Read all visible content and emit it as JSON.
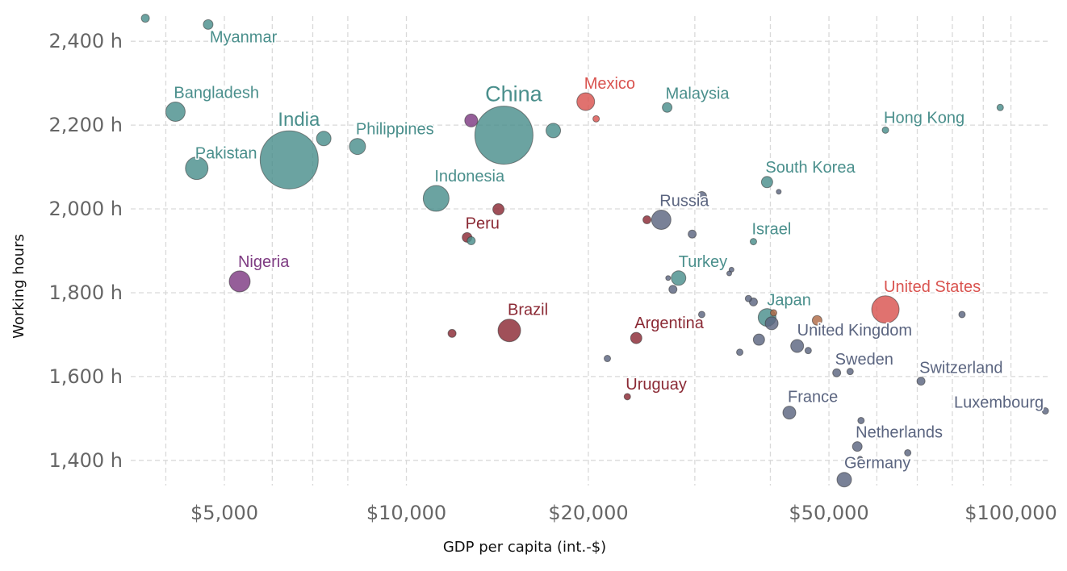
{
  "chart_data": {
    "type": "scatter",
    "title": "",
    "xlabel": "GDP per capita (int.-$)",
    "ylabel": "Working hours",
    "x_scale": "log",
    "xlim": [
      3500,
      115000
    ],
    "ylim": [
      1340,
      2460
    ],
    "x_ticks": [
      {
        "value": 5000,
        "label": "$5,000"
      },
      {
        "value": 10000,
        "label": "$10,000"
      },
      {
        "value": 20000,
        "label": "$20,000"
      },
      {
        "value": 50000,
        "label": "$50,000"
      },
      {
        "value": 100000,
        "label": "$100,000"
      }
    ],
    "x_minor_ticks": [
      4000,
      6000,
      7000,
      8000,
      30000,
      40000,
      60000,
      70000,
      80000,
      90000
    ],
    "y_ticks": [
      {
        "value": 1400,
        "label": "1,400 h"
      },
      {
        "value": 1600,
        "label": "1,600 h"
      },
      {
        "value": 1800,
        "label": "1,800 h"
      },
      {
        "value": 2000,
        "label": "2,000 h"
      },
      {
        "value": 2200,
        "label": "2,200 h"
      },
      {
        "value": 2400,
        "label": "2,400 h"
      }
    ],
    "grid": true,
    "colors": {
      "asia": "#4a8f8c",
      "north_america": "#d9534f",
      "south_america": "#8b2a35",
      "africa": "#7e3b82",
      "europe": "#5b6580",
      "oceania": "#b06a45"
    },
    "points": [
      {
        "label": "",
        "x": 3700,
        "y": 2455,
        "size": 5,
        "region": "asia"
      },
      {
        "label": "Myanmar",
        "x": 4700,
        "y": 2440,
        "size": 6,
        "region": "asia"
      },
      {
        "label": "Bangladesh",
        "x": 4150,
        "y": 2232,
        "size": 12,
        "region": "asia"
      },
      {
        "label": "India",
        "x": 6400,
        "y": 2117,
        "size": 36,
        "region": "asia"
      },
      {
        "label": "",
        "x": 7300,
        "y": 2168,
        "size": 9,
        "region": "asia"
      },
      {
        "label": "Philippines",
        "x": 8300,
        "y": 2149,
        "size": 10,
        "region": "asia"
      },
      {
        "label": "Pakistan",
        "x": 4500,
        "y": 2097,
        "size": 14,
        "region": "asia"
      },
      {
        "label": "China",
        "x": 14500,
        "y": 2176,
        "size": 36,
        "region": "asia"
      },
      {
        "label": "",
        "x": 12800,
        "y": 2211,
        "size": 8,
        "region": "africa"
      },
      {
        "label": "",
        "x": 17500,
        "y": 2187,
        "size": 9,
        "region": "asia"
      },
      {
        "label": "Mexico",
        "x": 19800,
        "y": 2256,
        "size": 11,
        "region": "north_america"
      },
      {
        "label": "",
        "x": 20600,
        "y": 2215,
        "size": 4,
        "region": "north_america"
      },
      {
        "label": "Malaysia",
        "x": 27000,
        "y": 2242,
        "size": 6,
        "region": "asia"
      },
      {
        "label": "Hong Kong",
        "x": 62000,
        "y": 2188,
        "size": 4,
        "region": "asia"
      },
      {
        "label": "",
        "x": 96000,
        "y": 2242,
        "size": 4,
        "region": "asia"
      },
      {
        "label": "Indonesia",
        "x": 11200,
        "y": 2025,
        "size": 16,
        "region": "asia"
      },
      {
        "label": "",
        "x": 14200,
        "y": 1999,
        "size": 7,
        "region": "south_america"
      },
      {
        "label": "",
        "x": 30800,
        "y": 2030,
        "size": 6,
        "region": "europe"
      },
      {
        "label": "South Korea",
        "x": 39500,
        "y": 2064,
        "size": 7,
        "region": "asia"
      },
      {
        "label": "",
        "x": 41300,
        "y": 2041,
        "size": 3,
        "region": "europe"
      },
      {
        "label": "Russia",
        "x": 26400,
        "y": 1974,
        "size": 12,
        "region": "europe"
      },
      {
        "label": "",
        "x": 25000,
        "y": 1974,
        "size": 5,
        "region": "south_america"
      },
      {
        "label": "",
        "x": 29700,
        "y": 1940,
        "size": 5,
        "region": "europe"
      },
      {
        "label": "Peru",
        "x": 12600,
        "y": 1932,
        "size": 6,
        "region": "south_america"
      },
      {
        "label": "",
        "x": 12800,
        "y": 1924,
        "size": 5,
        "region": "asia"
      },
      {
        "label": "Israel",
        "x": 37500,
        "y": 1922,
        "size": 4,
        "region": "asia"
      },
      {
        "label": "Nigeria",
        "x": 5300,
        "y": 1827,
        "size": 13,
        "region": "africa"
      },
      {
        "label": "Turkey",
        "x": 28200,
        "y": 1835,
        "size": 9,
        "region": "asia"
      },
      {
        "label": "",
        "x": 27100,
        "y": 1835,
        "size": 3,
        "region": "europe"
      },
      {
        "label": "",
        "x": 34500,
        "y": 1855,
        "size": 3,
        "region": "europe"
      },
      {
        "label": "",
        "x": 34200,
        "y": 1846,
        "size": 3,
        "region": "europe"
      },
      {
        "label": "",
        "x": 27600,
        "y": 1808,
        "size": 5,
        "region": "europe"
      },
      {
        "label": "United States",
        "x": 62000,
        "y": 1760,
        "size": 17,
        "region": "north_america"
      },
      {
        "label": "",
        "x": 36800,
        "y": 1786,
        "size": 4,
        "region": "europe"
      },
      {
        "label": "",
        "x": 37500,
        "y": 1778,
        "size": 5,
        "region": "europe"
      },
      {
        "label": "Japan",
        "x": 39500,
        "y": 1741,
        "size": 11,
        "region": "asia"
      },
      {
        "label": "",
        "x": 40500,
        "y": 1752,
        "size": 4,
        "region": "oceania"
      },
      {
        "label": "",
        "x": 40200,
        "y": 1727,
        "size": 8,
        "region": "europe"
      },
      {
        "label": "",
        "x": 47800,
        "y": 1734,
        "size": 6,
        "region": "oceania"
      },
      {
        "label": "",
        "x": 83000,
        "y": 1748,
        "size": 4,
        "region": "europe"
      },
      {
        "label": "",
        "x": 30800,
        "y": 1748,
        "size": 4,
        "region": "europe"
      },
      {
        "label": "Brazil",
        "x": 14800,
        "y": 1710,
        "size": 14,
        "region": "south_america"
      },
      {
        "label": "",
        "x": 11900,
        "y": 1703,
        "size": 5,
        "region": "south_america"
      },
      {
        "label": "Argentina",
        "x": 24000,
        "y": 1692,
        "size": 7,
        "region": "south_america"
      },
      {
        "label": "",
        "x": 38300,
        "y": 1688,
        "size": 7,
        "region": "europe"
      },
      {
        "label": "United Kingdom",
        "x": 44300,
        "y": 1673,
        "size": 8,
        "region": "europe"
      },
      {
        "label": "",
        "x": 46200,
        "y": 1662,
        "size": 4,
        "region": "europe"
      },
      {
        "label": "",
        "x": 35600,
        "y": 1658,
        "size": 4,
        "region": "europe"
      },
      {
        "label": "",
        "x": 21500,
        "y": 1643,
        "size": 4,
        "region": "europe"
      },
      {
        "label": "Sweden",
        "x": 51500,
        "y": 1609,
        "size": 5,
        "region": "europe"
      },
      {
        "label": "",
        "x": 54200,
        "y": 1612,
        "size": 4,
        "region": "europe"
      },
      {
        "label": "Switzerland",
        "x": 71000,
        "y": 1589,
        "size": 5,
        "region": "europe"
      },
      {
        "label": "Uruguay",
        "x": 23200,
        "y": 1552,
        "size": 4,
        "region": "south_america"
      },
      {
        "label": "France",
        "x": 43000,
        "y": 1514,
        "size": 8,
        "region": "europe"
      },
      {
        "label": "Luxembourg",
        "x": 114000,
        "y": 1518,
        "size": 4,
        "region": "europe"
      },
      {
        "label": "",
        "x": 56500,
        "y": 1495,
        "size": 4,
        "region": "europe"
      },
      {
        "label": "Netherlands",
        "x": 55700,
        "y": 1433,
        "size": 6,
        "region": "europe"
      },
      {
        "label": "",
        "x": 56300,
        "y": 1404,
        "size": 3,
        "region": "europe"
      },
      {
        "label": "",
        "x": 67500,
        "y": 1418,
        "size": 4,
        "region": "europe"
      },
      {
        "label": "Germany",
        "x": 53000,
        "y": 1354,
        "size": 9,
        "region": "europe"
      }
    ]
  }
}
